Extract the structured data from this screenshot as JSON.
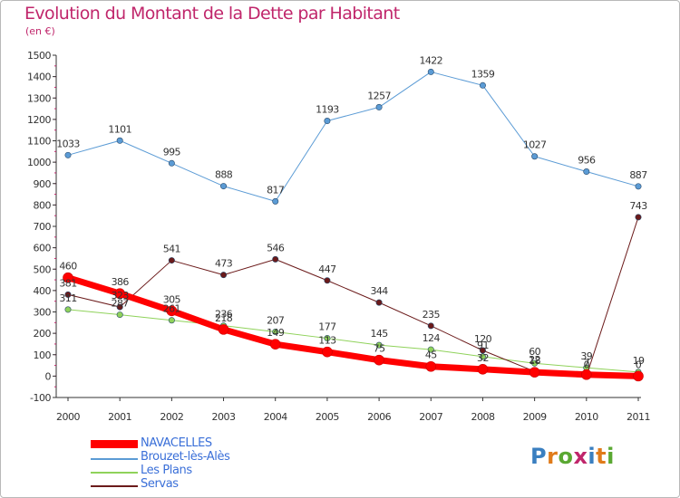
{
  "header": {
    "title": "Evolution du Montant de la Dette par Habitant",
    "unit": "(en €)"
  },
  "logo": {
    "text": "Proxiti",
    "colors": [
      "#3a7fc0",
      "#e07b1a",
      "#5aa832",
      "#c0266b"
    ]
  },
  "chart_data": {
    "type": "line",
    "title": "Evolution du Montant de la Dette par Habitant",
    "subtitle": "(en €)",
    "xlabel": "",
    "ylabel": "",
    "x": [
      "2000",
      "2001",
      "2002",
      "2003",
      "2004",
      "2005",
      "2006",
      "2007",
      "2008",
      "2009",
      "2010",
      "2011"
    ],
    "ylim": [
      -100,
      1500
    ],
    "yticks": [
      -100,
      0,
      100,
      200,
      300,
      400,
      500,
      600,
      700,
      800,
      900,
      1000,
      1100,
      1200,
      1300,
      1400,
      1500
    ],
    "grid": false,
    "legend_position": "bottom-left",
    "series": [
      {
        "name": "Brouzet-lès-Alès",
        "color": "#5b9bd5",
        "line_width": 1,
        "values": [
          1033,
          1101,
          995,
          888,
          817,
          1193,
          1257,
          1422,
          1359,
          1027,
          956,
          887
        ]
      },
      {
        "name": "Les Plans",
        "color": "#8fd25a",
        "line_width": 1,
        "values": [
          311,
          287,
          261,
          236,
          207,
          177,
          145,
          124,
          91,
          60,
          39,
          19
        ]
      },
      {
        "name": "Servas",
        "color": "#6b1a1a",
        "line_width": 1,
        "values": [
          381,
          323,
          541,
          473,
          546,
          447,
          344,
          235,
          120,
          22,
          0,
          743
        ]
      },
      {
        "name": "NAVACELLES",
        "color": "#ff0000",
        "line_width": 7,
        "values": [
          460,
          386,
          305,
          218,
          149,
          113,
          75,
          45,
          32,
          18,
          7,
          0
        ]
      }
    ],
    "data_labels": [
      [
        "1033",
        "1101",
        "995",
        "888",
        "817",
        "1193",
        "1257",
        "1422",
        "1359",
        "1027",
        "956",
        "887"
      ],
      [
        "311",
        "287",
        "261",
        "236",
        "207",
        "177",
        "145",
        "124",
        "91",
        "60",
        "39",
        "19"
      ],
      [
        "381",
        "323",
        "541",
        "473",
        "546",
        "447",
        "344",
        "235",
        "120",
        "22",
        "0",
        "743"
      ],
      [
        "460",
        "386",
        "305",
        "218",
        "149",
        "113",
        "75",
        "45",
        "32",
        "18",
        "7",
        "0"
      ]
    ]
  },
  "legend": {
    "items": [
      {
        "label": "NAVACELLES",
        "color": "#ff0000"
      },
      {
        "label": "Brouzet-lès-Alès",
        "color": "#5b9bd5"
      },
      {
        "label": "Les Plans",
        "color": "#8fd25a"
      },
      {
        "label": "Servas",
        "color": "#6b1a1a"
      }
    ]
  }
}
